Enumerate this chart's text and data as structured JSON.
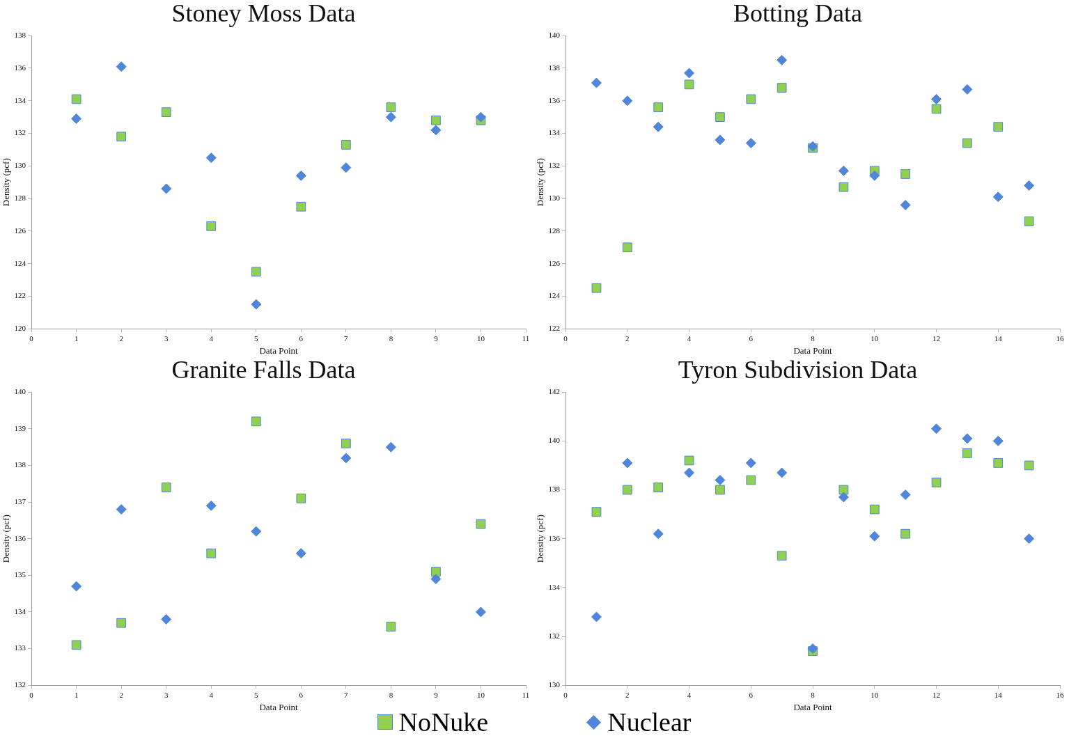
{
  "chart_data": [
    {
      "type": "scatter",
      "title": "Stoney Moss Data",
      "xlabel": "Data Point",
      "ylabel": "Density (pcf)",
      "xlim": [
        0,
        11
      ],
      "xticks": [
        0,
        1,
        2,
        3,
        4,
        5,
        6,
        7,
        8,
        9,
        10,
        11
      ],
      "ylim": [
        120,
        138
      ],
      "yticks": [
        120,
        122,
        124,
        126,
        128,
        130,
        132,
        134,
        136,
        138
      ],
      "grid": false,
      "legend": "bottom",
      "series": [
        {
          "name": "NoNuke",
          "color": "#92d050",
          "marker": "square",
          "x": [
            1,
            2,
            3,
            4,
            5,
            6,
            7,
            8,
            9,
            10
          ],
          "values": [
            134.1,
            131.8,
            133.3,
            126.3,
            123.5,
            127.5,
            131.3,
            133.6,
            132.8,
            132.8
          ]
        },
        {
          "name": "Nuclear",
          "color": "#4f86d9",
          "marker": "diamond",
          "x": [
            1,
            2,
            3,
            4,
            5,
            6,
            7,
            8,
            9,
            10
          ],
          "values": [
            132.9,
            136.1,
            128.6,
            130.5,
            121.5,
            129.4,
            129.9,
            133.0,
            132.2,
            133.0
          ]
        }
      ]
    },
    {
      "type": "scatter",
      "title": "Botting Data",
      "xlabel": "Data Point",
      "ylabel": "Density (pcf)",
      "xlim": [
        0,
        16
      ],
      "xticks": [
        0,
        2,
        4,
        6,
        8,
        10,
        12,
        14,
        16
      ],
      "ylim": [
        122,
        140
      ],
      "yticks": [
        122,
        124,
        126,
        128,
        130,
        132,
        134,
        136,
        138,
        140
      ],
      "grid": false,
      "series": [
        {
          "color": "#92d050",
          "marker": "square",
          "x": [
            1,
            2,
            3,
            4,
            5,
            6,
            7,
            8,
            9,
            10,
            11,
            12,
            13,
            14,
            15
          ],
          "values": [
            124.5,
            127.0,
            135.6,
            137.0,
            135.0,
            136.1,
            136.8,
            133.1,
            130.7,
            131.7,
            131.5,
            135.5,
            133.4,
            134.4,
            128.6
          ]
        },
        {
          "color": "#4f86d9",
          "marker": "diamond",
          "x": [
            1,
            2,
            3,
            4,
            5,
            6,
            7,
            8,
            9,
            10,
            11,
            12,
            13,
            14,
            15
          ],
          "values": [
            137.1,
            136.0,
            134.4,
            137.7,
            133.6,
            133.4,
            138.5,
            133.2,
            131.7,
            131.4,
            129.6,
            136.1,
            136.7,
            130.1,
            130.8
          ]
        }
      ]
    },
    {
      "type": "scatter",
      "title": "Granite Falls Data",
      "xlabel": "Data Point",
      "ylabel": "Density (pcf)",
      "xlim": [
        0,
        11
      ],
      "xticks": [
        0,
        1,
        2,
        3,
        4,
        5,
        6,
        7,
        8,
        9,
        10,
        11
      ],
      "ylim": [
        132,
        140
      ],
      "yticks": [
        132,
        133,
        134,
        135,
        136,
        137,
        138,
        139,
        140
      ],
      "grid": false,
      "series": [
        {
          "color": "#92d050",
          "marker": "square",
          "x": [
            1,
            2,
            3,
            4,
            5,
            6,
            7,
            8,
            9,
            10
          ],
          "values": [
            133.1,
            133.7,
            137.4,
            135.6,
            139.2,
            137.1,
            138.6,
            133.6,
            135.1,
            136.4
          ]
        },
        {
          "color": "#4f86d9",
          "marker": "diamond",
          "x": [
            1,
            2,
            3,
            4,
            5,
            6,
            7,
            8,
            9,
            10
          ],
          "values": [
            134.7,
            136.8,
            133.8,
            136.9,
            136.2,
            135.6,
            138.2,
            138.5,
            134.9,
            134.0
          ]
        }
      ]
    },
    {
      "type": "scatter",
      "title": "Tyron Subdivision Data",
      "xlabel": "Data Point",
      "ylabel": "Density (pcf)",
      "xlim": [
        0,
        16
      ],
      "xticks": [
        0,
        2,
        4,
        6,
        8,
        10,
        12,
        14,
        16
      ],
      "ylim": [
        130,
        142
      ],
      "yticks": [
        130,
        132,
        134,
        136,
        138,
        140,
        142
      ],
      "grid": false,
      "series": [
        {
          "color": "#92d050",
          "marker": "square",
          "x": [
            1,
            2,
            3,
            4,
            5,
            6,
            7,
            8,
            9,
            10,
            11,
            12,
            13,
            14,
            15
          ],
          "values": [
            137.1,
            138.0,
            138.1,
            139.2,
            138.0,
            138.4,
            135.3,
            131.4,
            138.0,
            137.2,
            136.2,
            138.3,
            139.5,
            139.1,
            139.0
          ]
        },
        {
          "color": "#4f86d9",
          "marker": "diamond",
          "x": [
            1,
            2,
            3,
            4,
            5,
            6,
            7,
            8,
            9,
            10,
            11,
            12,
            13,
            14,
            15
          ],
          "values": [
            132.8,
            139.1,
            136.2,
            138.7,
            138.4,
            139.1,
            138.7,
            131.5,
            137.7,
            136.1,
            137.8,
            140.5,
            140.1,
            140.0,
            136.0
          ]
        }
      ]
    }
  ]
}
